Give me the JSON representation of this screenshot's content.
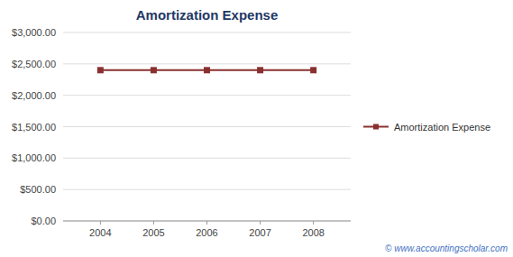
{
  "chart_data": {
    "type": "line",
    "title": "Amortization Expense",
    "x": [
      2004,
      2005,
      2006,
      2007,
      2008
    ],
    "xlim": [
      2003.3,
      2008.7
    ],
    "xticks": [
      2004,
      2005,
      2006,
      2007,
      2008
    ],
    "ylim": [
      0,
      3000
    ],
    "yticks": [
      {
        "value": 0,
        "label": "$0.00"
      },
      {
        "value": 500,
        "label": "$500.00"
      },
      {
        "value": 1000,
        "label": "$1,000.00"
      },
      {
        "value": 1500,
        "label": "$1,500.00"
      },
      {
        "value": 2000,
        "label": "$2,000.00"
      },
      {
        "value": 2500,
        "label": "$2,500.00"
      },
      {
        "value": 3000,
        "label": "$3,000.00"
      }
    ],
    "series": [
      {
        "name": "Amortization Expense",
        "color": "#8B3030",
        "marker": "square",
        "values": [
          2400,
          2400,
          2400,
          2400,
          2400
        ]
      }
    ],
    "grid": true,
    "legend": "right",
    "annotations": [
      "© www.accountingscholar.com"
    ]
  }
}
